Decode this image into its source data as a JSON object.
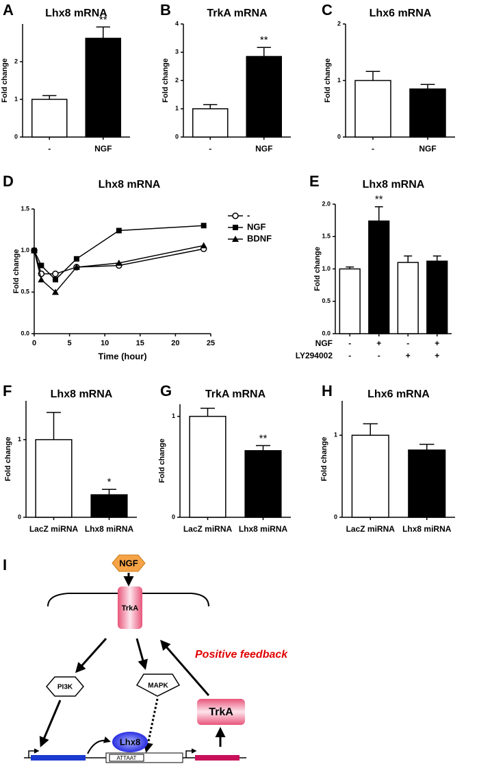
{
  "chart_data": [
    {
      "type": "bar",
      "panel_label": "A",
      "title": "Lhx8 mRNA",
      "y_label": "Fold change",
      "categories": [
        "-",
        "NGF"
      ],
      "values": [
        1.0,
        2.62
      ],
      "errors": [
        0.1,
        0.3
      ],
      "colors": [
        "#ffffff",
        "#000000"
      ],
      "significance": [
        null,
        "**"
      ],
      "ylim": [
        0,
        3
      ],
      "yticks": [
        0,
        1,
        2
      ]
    },
    {
      "type": "bar",
      "panel_label": "B",
      "title": "TrkA mRNA",
      "y_label": "Fold change",
      "categories": [
        "-",
        "NGF"
      ],
      "values": [
        1.0,
        2.85
      ],
      "errors": [
        0.15,
        0.32
      ],
      "colors": [
        "#ffffff",
        "#000000"
      ],
      "significance": [
        null,
        "**"
      ],
      "ylim": [
        0,
        4
      ],
      "yticks": [
        0,
        1,
        2,
        3,
        4
      ]
    },
    {
      "type": "bar",
      "panel_label": "C",
      "title": "Lhx6 mRNA",
      "y_label": "Fold change",
      "categories": [
        "-",
        "NGF"
      ],
      "values": [
        1.0,
        0.85
      ],
      "errors": [
        0.16,
        0.08
      ],
      "colors": [
        "#ffffff",
        "#000000"
      ],
      "ylim": [
        0,
        2
      ],
      "yticks": [
        0,
        1,
        2
      ]
    },
    {
      "type": "line",
      "panel_label": "D",
      "title": "Lhx8 mRNA",
      "y_label": "Fold change",
      "x_label": "Time (hour)",
      "x": [
        0,
        1,
        3,
        6,
        12,
        24
      ],
      "series": [
        {
          "name": "-",
          "color": "#000000",
          "marker": "circle-open",
          "values": [
            1.0,
            0.72,
            0.72,
            0.8,
            0.82,
            1.02
          ]
        },
        {
          "name": "NGF",
          "color": "#000000",
          "marker": "square",
          "values": [
            1.0,
            0.82,
            0.65,
            0.9,
            1.24,
            1.3
          ]
        },
        {
          "name": "BDNF",
          "color": "#000000",
          "marker": "triangle",
          "values": [
            1.0,
            0.65,
            0.5,
            0.8,
            0.85,
            1.06
          ]
        }
      ],
      "xlim": [
        0,
        25
      ],
      "xticks": [
        0,
        5,
        10,
        15,
        20,
        25
      ],
      "ylim": [
        0,
        1.5
      ],
      "yticks": [
        {
          "value": 0,
          "label": "0.0"
        },
        0.5,
        {
          "value": 1,
          "label": "1.0"
        },
        1.5
      ]
    },
    {
      "type": "bar",
      "panel_label": "E",
      "title": "Lhx8 mRNA",
      "y_label": "Fold change",
      "values": [
        1.0,
        1.74,
        1.1,
        1.12
      ],
      "errors": [
        0.03,
        0.22,
        0.1,
        0.08
      ],
      "colors": [
        "#ffffff",
        "#000000",
        "#ffffff",
        "#000000"
      ],
      "significance": [
        null,
        "**",
        null,
        null
      ],
      "conditions": [
        {
          "name": "NGF",
          "values": [
            "-",
            "+",
            "-",
            "+"
          ]
        },
        {
          "name": "LY294002",
          "values": [
            "-",
            "-",
            "+",
            "+"
          ]
        }
      ],
      "ylim": [
        0,
        2
      ],
      "yticks": [
        {
          "value": 0,
          "label": "0.0"
        },
        0.5,
        {
          "value": 1,
          "label": "1.0"
        },
        1.5,
        {
          "value": 2,
          "label": "2.0"
        }
      ]
    },
    {
      "type": "bar",
      "panel_label": "F",
      "title": "Lhx8 mRNA",
      "y_label": "Fold change",
      "categories": [
        "LacZ miRNA",
        "Lhx8 miRNA"
      ],
      "values": [
        1.0,
        0.29
      ],
      "errors": [
        0.35,
        0.07
      ],
      "colors": [
        "#ffffff",
        "#000000"
      ],
      "significance": [
        null,
        "*"
      ],
      "ylim": [
        0,
        1.5
      ],
      "yticks": [
        0,
        1
      ]
    },
    {
      "type": "bar",
      "panel_label": "G",
      "title": "TrkA mRNA",
      "y_label": "Fold change",
      "categories": [
        "LacZ miRNA",
        "Lhx8 miRNA"
      ],
      "values": [
        1.0,
        0.66
      ],
      "errors": [
        0.08,
        0.05
      ],
      "colors": [
        "#ffffff",
        "#000000"
      ],
      "significance": [
        null,
        "**"
      ],
      "ylim": [
        0,
        1.12
      ],
      "yticks": [
        0,
        1
      ]
    },
    {
      "type": "bar",
      "panel_label": "H",
      "title": "Lhx6 mRNA",
      "y_label": "Fold change",
      "categories": [
        "LacZ miRNA",
        "Lhx8 miRNA"
      ],
      "values": [
        1.0,
        0.82
      ],
      "errors": [
        0.14,
        0.07
      ],
      "colors": [
        "#ffffff",
        "#000000"
      ],
      "ylim": [
        0,
        1.42
      ],
      "yticks": [
        0,
        1
      ]
    }
  ],
  "diagram": {
    "panel_label": "I",
    "ligand": "NGF",
    "receptor": "TrkA",
    "feedback": "Positive feedback",
    "pathways": [
      "PI3K",
      "MAPK"
    ],
    "factor": "Lhx8",
    "motif": "ATTAAT",
    "product": "TrkA"
  }
}
